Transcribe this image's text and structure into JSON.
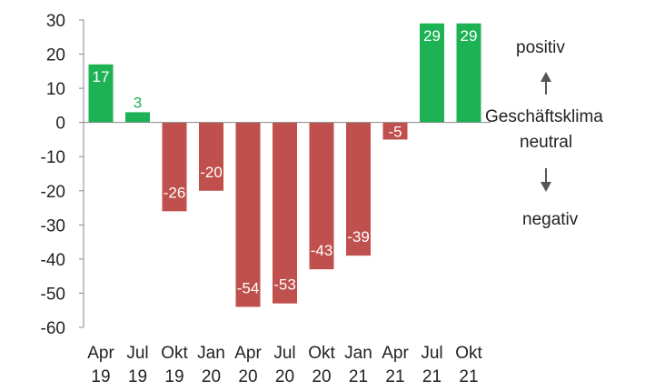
{
  "chart_data": {
    "type": "bar",
    "title": "",
    "xlabel": "",
    "ylabel": "",
    "ylim": [
      -60,
      30
    ],
    "yticks": [
      "30",
      "20",
      "10",
      "0",
      "-10",
      "-20",
      "-30",
      "-40",
      "-50",
      "-60"
    ],
    "categories": [
      [
        "Apr",
        "19"
      ],
      [
        "Jul",
        "19"
      ],
      [
        "Okt",
        "19"
      ],
      [
        "Jan",
        "20"
      ],
      [
        "Apr",
        "20"
      ],
      [
        "Jul",
        "20"
      ],
      [
        "Okt",
        "20"
      ],
      [
        "Jan",
        "21"
      ],
      [
        "Apr",
        "21"
      ],
      [
        "Jul",
        "21"
      ],
      [
        "Okt",
        "21"
      ]
    ],
    "values": [
      17,
      3,
      -26,
      -20,
      -54,
      -53,
      -43,
      -39,
      -5,
      29,
      29
    ],
    "data_labels": [
      "17",
      "3",
      "-26",
      "-20",
      "-54",
      "-53",
      "-43",
      "-39",
      "-5",
      "29",
      "29"
    ],
    "grid": false,
    "colors": {
      "positive": "#1db254",
      "negative": "#c0504d",
      "axis": "#888888",
      "text": "#222222",
      "arrow": "#555555"
    }
  },
  "annotations": {
    "positive": "positiv",
    "climate_line1": "Geschäftsklima",
    "climate_line2": "neutral",
    "negative": "negativ"
  }
}
